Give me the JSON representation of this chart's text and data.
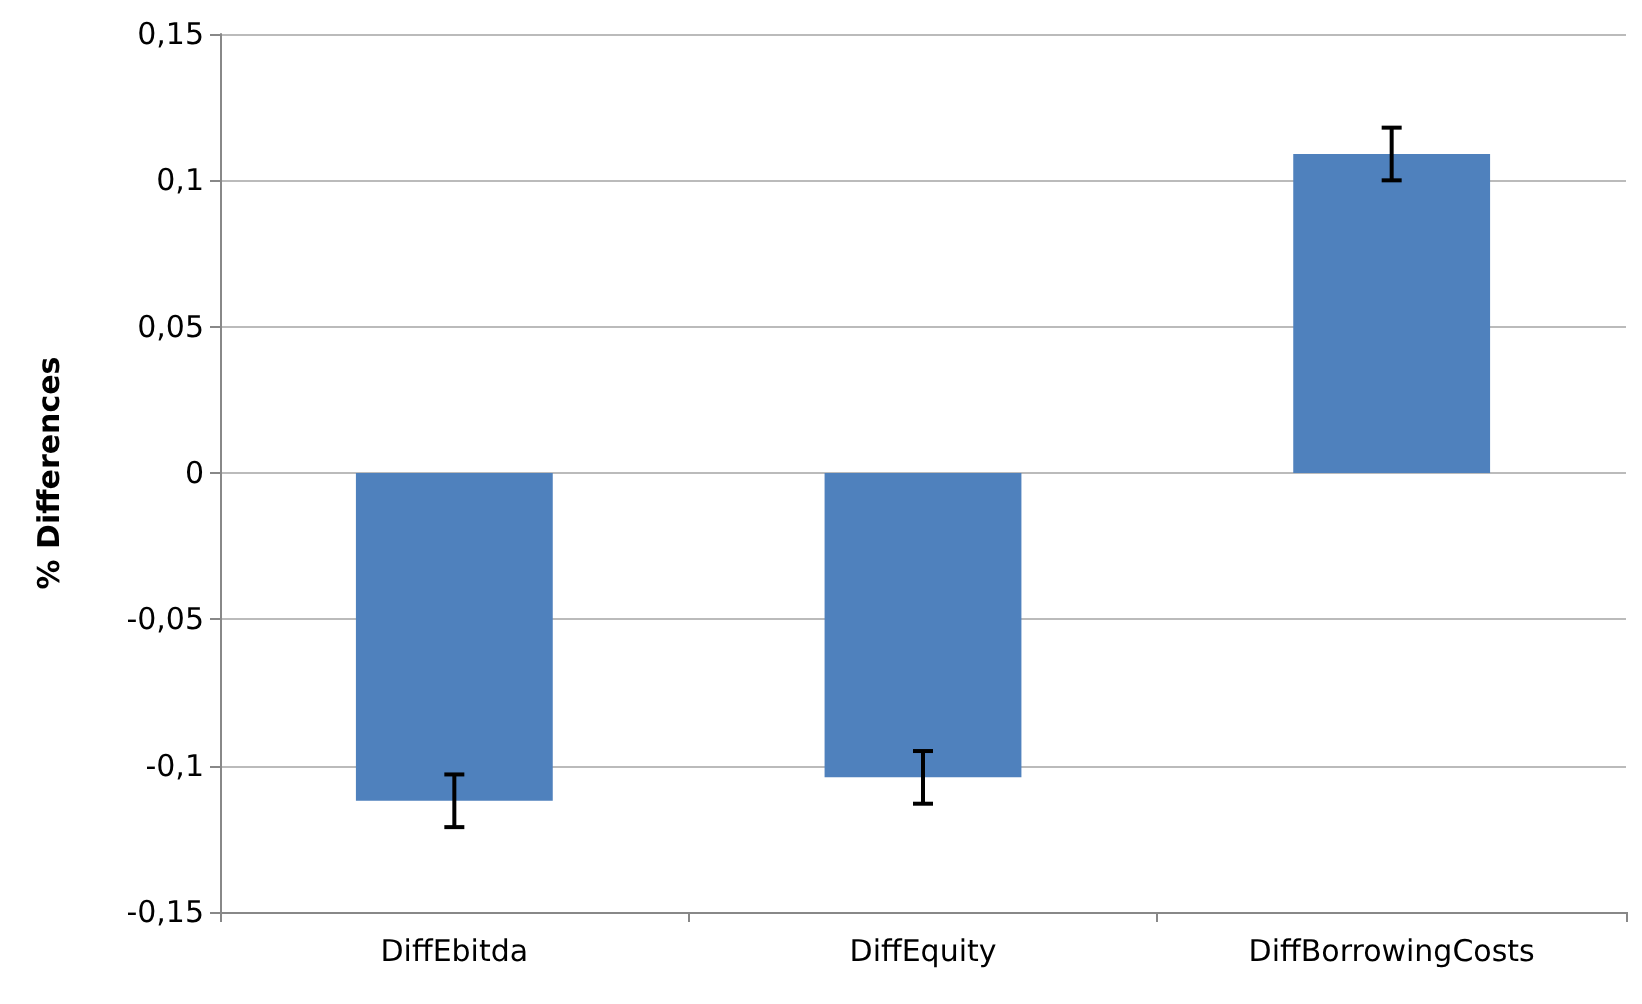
{
  "chart_data": {
    "type": "bar",
    "ylabel": "% Differences",
    "categories": [
      "DiffEbitda",
      "DiffEquity",
      "DiffBorrowingCosts"
    ],
    "values": [
      -0.112,
      -0.104,
      0.109
    ],
    "errors": [
      0.009,
      0.009,
      0.009
    ],
    "color": "#4f81bd",
    "ylim": [
      -0.15,
      0.15
    ],
    "yticks": [
      {
        "value": -0.15,
        "label": "-0,15"
      },
      {
        "value": -0.1,
        "label": "-0,1"
      },
      {
        "value": -0.05,
        "label": "-0,05"
      },
      0,
      {
        "value": 0.05,
        "label": "0,05"
      },
      {
        "value": 0.1,
        "label": "0,1"
      },
      {
        "value": 0.15,
        "label": "0,15"
      }
    ],
    "grid": "y"
  }
}
